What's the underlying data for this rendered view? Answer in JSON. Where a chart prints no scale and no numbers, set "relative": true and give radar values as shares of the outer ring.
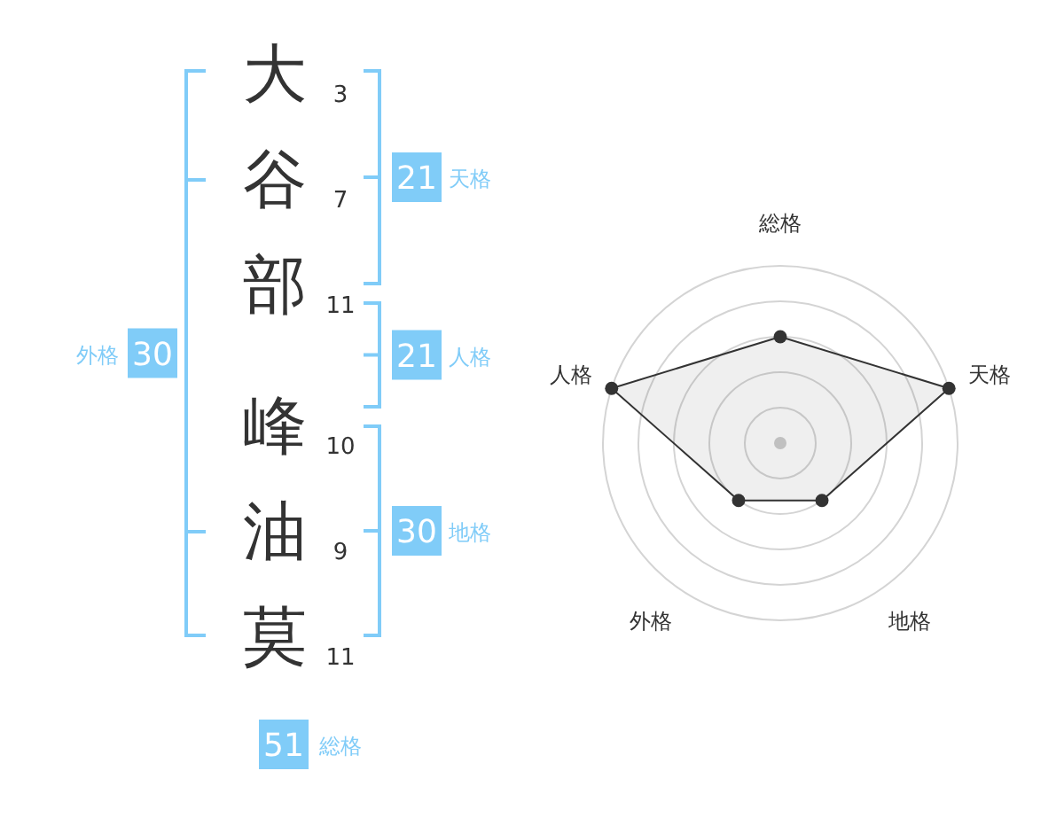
{
  "chart_data": [
    {
      "type": "other",
      "categories": [
        "大",
        "谷",
        "部",
        "峰",
        "油",
        "莫"
      ],
      "values": [
        3,
        7,
        11,
        10,
        9,
        11
      ],
      "data_labels": true
    },
    {
      "type": "other",
      "categories": [
        "天格",
        "人格",
        "地格",
        "外格",
        "総格"
      ],
      "values": [
        21,
        21,
        30,
        30,
        51
      ],
      "color": "#80ccf8",
      "data_labels": true
    },
    {
      "type": "radar",
      "categories": [
        "総格",
        "天格",
        "地格",
        "外格",
        "人格"
      ],
      "relative": true,
      "grid": true,
      "marker": "circle",
      "series": [
        {
          "color": "#333333",
          "values": [
            0.6,
            1,
            0.4,
            0.4,
            1
          ]
        }
      ]
    }
  ]
}
